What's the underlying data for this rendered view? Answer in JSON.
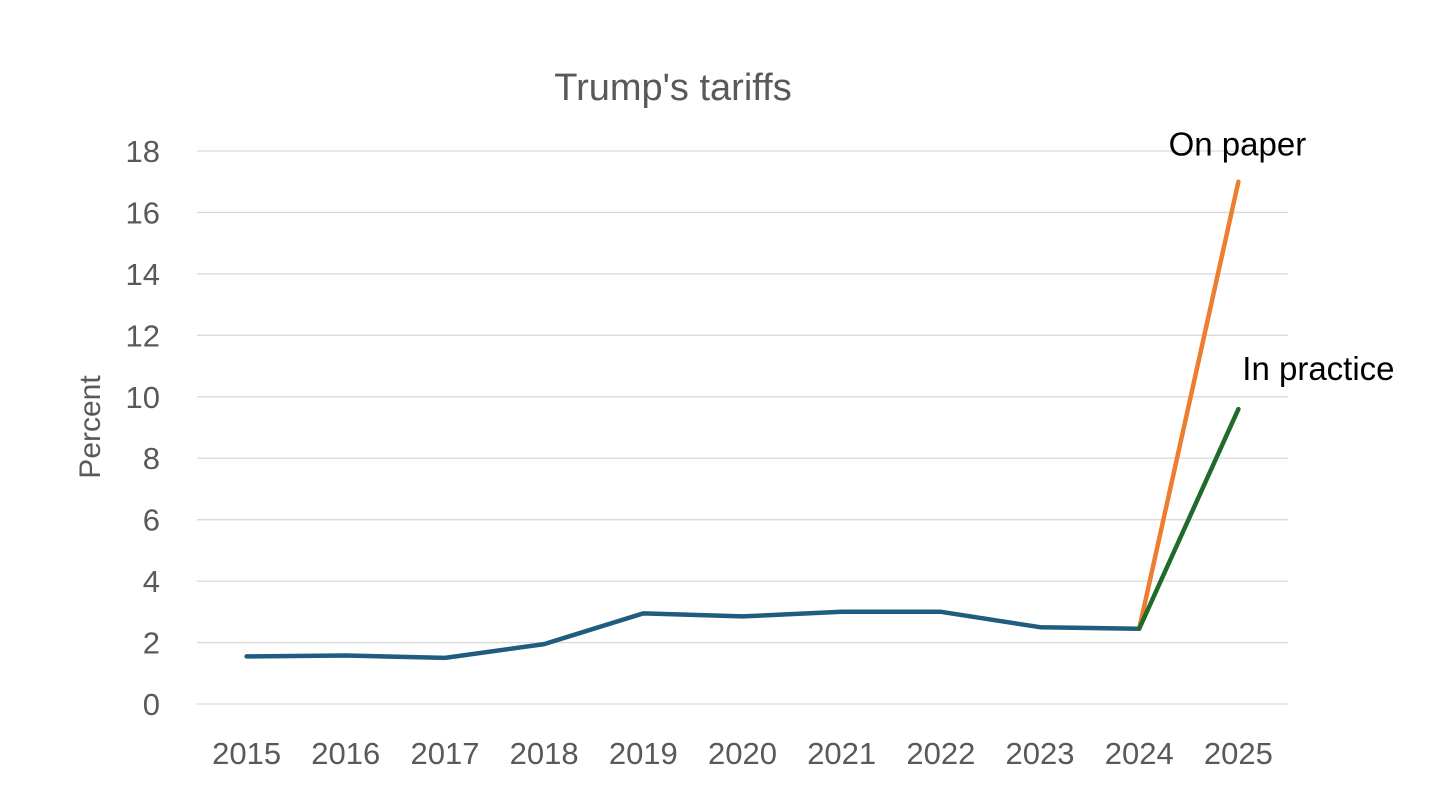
{
  "chart_data": {
    "type": "line",
    "title": "Trump's tariffs",
    "xlabel": "",
    "ylabel": "Percent",
    "ylim": [
      0,
      18
    ],
    "yticks": [
      0,
      2,
      4,
      6,
      8,
      10,
      12,
      14,
      16,
      18
    ],
    "categories": [
      "2015",
      "2016",
      "2017",
      "2018",
      "2019",
      "2020",
      "2021",
      "2022",
      "2023",
      "2024",
      "2025"
    ],
    "grid": true,
    "series": [
      {
        "name": "",
        "color": "#1f5c80",
        "values": [
          1.55,
          1.58,
          1.5,
          1.95,
          2.95,
          2.85,
          3.0,
          3.0,
          2.5,
          2.45,
          null
        ]
      },
      {
        "name": "On paper",
        "color": "#ed7d31",
        "values": [
          null,
          null,
          null,
          null,
          null,
          null,
          null,
          null,
          null,
          2.45,
          17.0
        ]
      },
      {
        "name": "In practice",
        "color": "#1e6b2a",
        "values": [
          null,
          null,
          null,
          null,
          null,
          null,
          null,
          null,
          null,
          2.45,
          9.6
        ]
      }
    ],
    "annotations": [
      {
        "text": "On paper",
        "series": "On paper"
      },
      {
        "text": "In practice",
        "series": "In practice"
      }
    ]
  }
}
